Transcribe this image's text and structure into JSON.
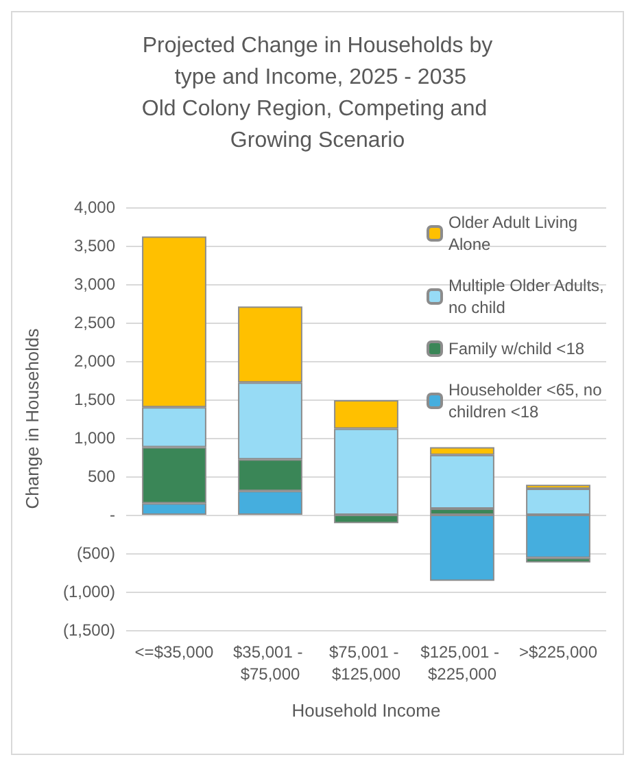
{
  "chart_data": {
    "type": "bar",
    "stacked": true,
    "title": "Projected Change in Households by type and Income, 2025 - 2035",
    "subtitle": "Old Colony Region, Competing and Growing Scenario",
    "xlabel": "Household Income",
    "ylabel": "Change in Households",
    "categories": [
      "<=$35,000",
      "$35,001 - $75,000",
      "$75,001 - $125,000",
      "$125,001 - $225,000",
      ">$225,000"
    ],
    "series": [
      {
        "name": "Householder <65, no children <18",
        "color": "#45aede",
        "values": [
          150,
          310,
          0,
          -860,
          -560
        ]
      },
      {
        "name": "Family w/child <18",
        "color": "#3a8657",
        "values": [
          730,
          410,
          -110,
          80,
          -60
        ]
      },
      {
        "name": "Multiple Older Adults, no child",
        "color": "#97dbf5",
        "values": [
          520,
          1000,
          1120,
          700,
          340
        ]
      },
      {
        "name": "Older Adult Living Alone",
        "color": "#ffc000",
        "values": [
          2220,
          990,
          370,
          100,
          50
        ]
      }
    ],
    "ylim": [
      -1500,
      4000
    ],
    "yticks": [
      {
        "value": -1500,
        "label": "(1,500)"
      },
      {
        "value": -1000,
        "label": "(1,000)"
      },
      {
        "value": -500,
        "label": "(500)"
      },
      {
        "value": 0,
        "label": "-"
      },
      {
        "value": 500,
        "label": "500"
      },
      {
        "value": 1000,
        "label": "1,000"
      },
      {
        "value": 1500,
        "label": "1,500"
      },
      {
        "value": 2000,
        "label": "2,000"
      },
      {
        "value": 2500,
        "label": "2,500"
      },
      {
        "value": 3000,
        "label": "3,000"
      },
      {
        "value": 3500,
        "label": "3,500"
      },
      {
        "value": 4000,
        "label": "4,000"
      }
    ],
    "grid": "y",
    "legend": "top right"
  }
}
